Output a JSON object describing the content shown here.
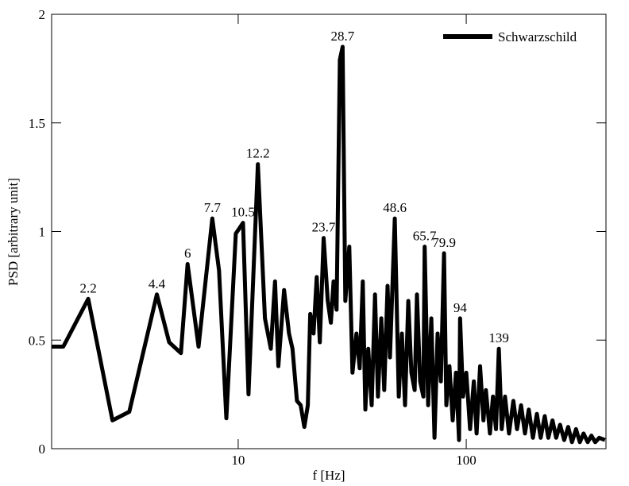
{
  "chart_data": {
    "type": "line",
    "xlabel": "f [Hz]",
    "ylabel": "PSD [arbitrary unit]",
    "x": [
      1.52,
      1.71,
      2.2,
      2.81,
      3.33,
      4.4,
      4.98,
      5.61,
      6,
      6.7,
      7.7,
      8.24,
      8.87,
      9.76,
      10.5,
      11.1,
      12.2,
      13.1,
      13.9,
      14.5,
      15.0,
      15.9,
      16.7,
      17.3,
      18.1,
      18.8,
      19.5,
      20.2,
      20.7,
      21.4,
      22.1,
      22.8,
      23.7,
      24.7,
      25.5,
      26.2,
      27.0,
      27.9,
      28.7,
      29.5,
      30.7,
      31.7,
      33.0,
      34.1,
      35.2,
      36.1,
      37.2,
      38.5,
      39.8,
      41.0,
      42.4,
      43.7,
      45.2,
      46.3,
      48.6,
      50.6,
      52.2,
      53.9,
      55.7,
      57.5,
      59.4,
      60.8,
      62.8,
      64.9,
      65.7,
      68.1,
      70.3,
      72.6,
      74.9,
      77.4,
      79.9,
      81.8,
      84.4,
      87.2,
      90.1,
      93.0,
      94,
      96.8,
      100,
      104,
      108,
      111,
      115,
      119,
      122,
      127,
      131,
      135,
      139,
      143,
      148,
      154,
      161,
      167,
      174,
      181,
      188,
      196,
      204,
      212,
      221,
      229,
      239,
      248,
      258,
      269,
      280,
      291,
      303,
      315,
      327,
      341,
      354,
      368,
      383,
      406
    ],
    "series": [
      {
        "name": "Schwarzschild",
        "color": "#000000",
        "values": [
          0.47,
          0.47,
          0.69,
          0.13,
          0.17,
          0.71,
          0.49,
          0.44,
          0.85,
          0.47,
          1.06,
          0.82,
          0.14,
          0.99,
          1.04,
          0.25,
          1.31,
          0.6,
          0.46,
          0.77,
          0.38,
          0.73,
          0.53,
          0.46,
          0.22,
          0.2,
          0.1,
          0.2,
          0.62,
          0.53,
          0.79,
          0.49,
          0.97,
          0.68,
          0.58,
          0.77,
          0.64,
          1.79,
          1.85,
          0.68,
          0.93,
          0.35,
          0.53,
          0.37,
          0.77,
          0.18,
          0.46,
          0.2,
          0.71,
          0.24,
          0.6,
          0.27,
          0.75,
          0.42,
          1.06,
          0.24,
          0.53,
          0.2,
          0.68,
          0.35,
          0.27,
          0.71,
          0.31,
          0.24,
          0.93,
          0.2,
          0.6,
          0.05,
          0.53,
          0.31,
          0.9,
          0.2,
          0.38,
          0.13,
          0.35,
          0.04,
          0.6,
          0.24,
          0.35,
          0.09,
          0.31,
          0.07,
          0.38,
          0.13,
          0.27,
          0.07,
          0.24,
          0.09,
          0.46,
          0.09,
          0.24,
          0.07,
          0.22,
          0.09,
          0.2,
          0.07,
          0.18,
          0.05,
          0.16,
          0.05,
          0.15,
          0.05,
          0.13,
          0.05,
          0.11,
          0.04,
          0.1,
          0.03,
          0.09,
          0.03,
          0.07,
          0.03,
          0.06,
          0.03,
          0.05,
          0.04
        ]
      }
    ],
    "annotations": [
      "2.2",
      "4.4",
      "6",
      "7.7",
      "10.5",
      "12.2",
      "23.7",
      "28.7",
      "48.6",
      "65.7",
      "79.9",
      "94",
      "139"
    ],
    "xlim": [
      1.52,
      410
    ],
    "xticks": [
      10,
      100
    ],
    "xscale": "log",
    "ylim": [
      0,
      2
    ],
    "yticks": [
      0,
      0.5,
      1,
      1.5,
      2
    ],
    "legend": "upper right"
  }
}
